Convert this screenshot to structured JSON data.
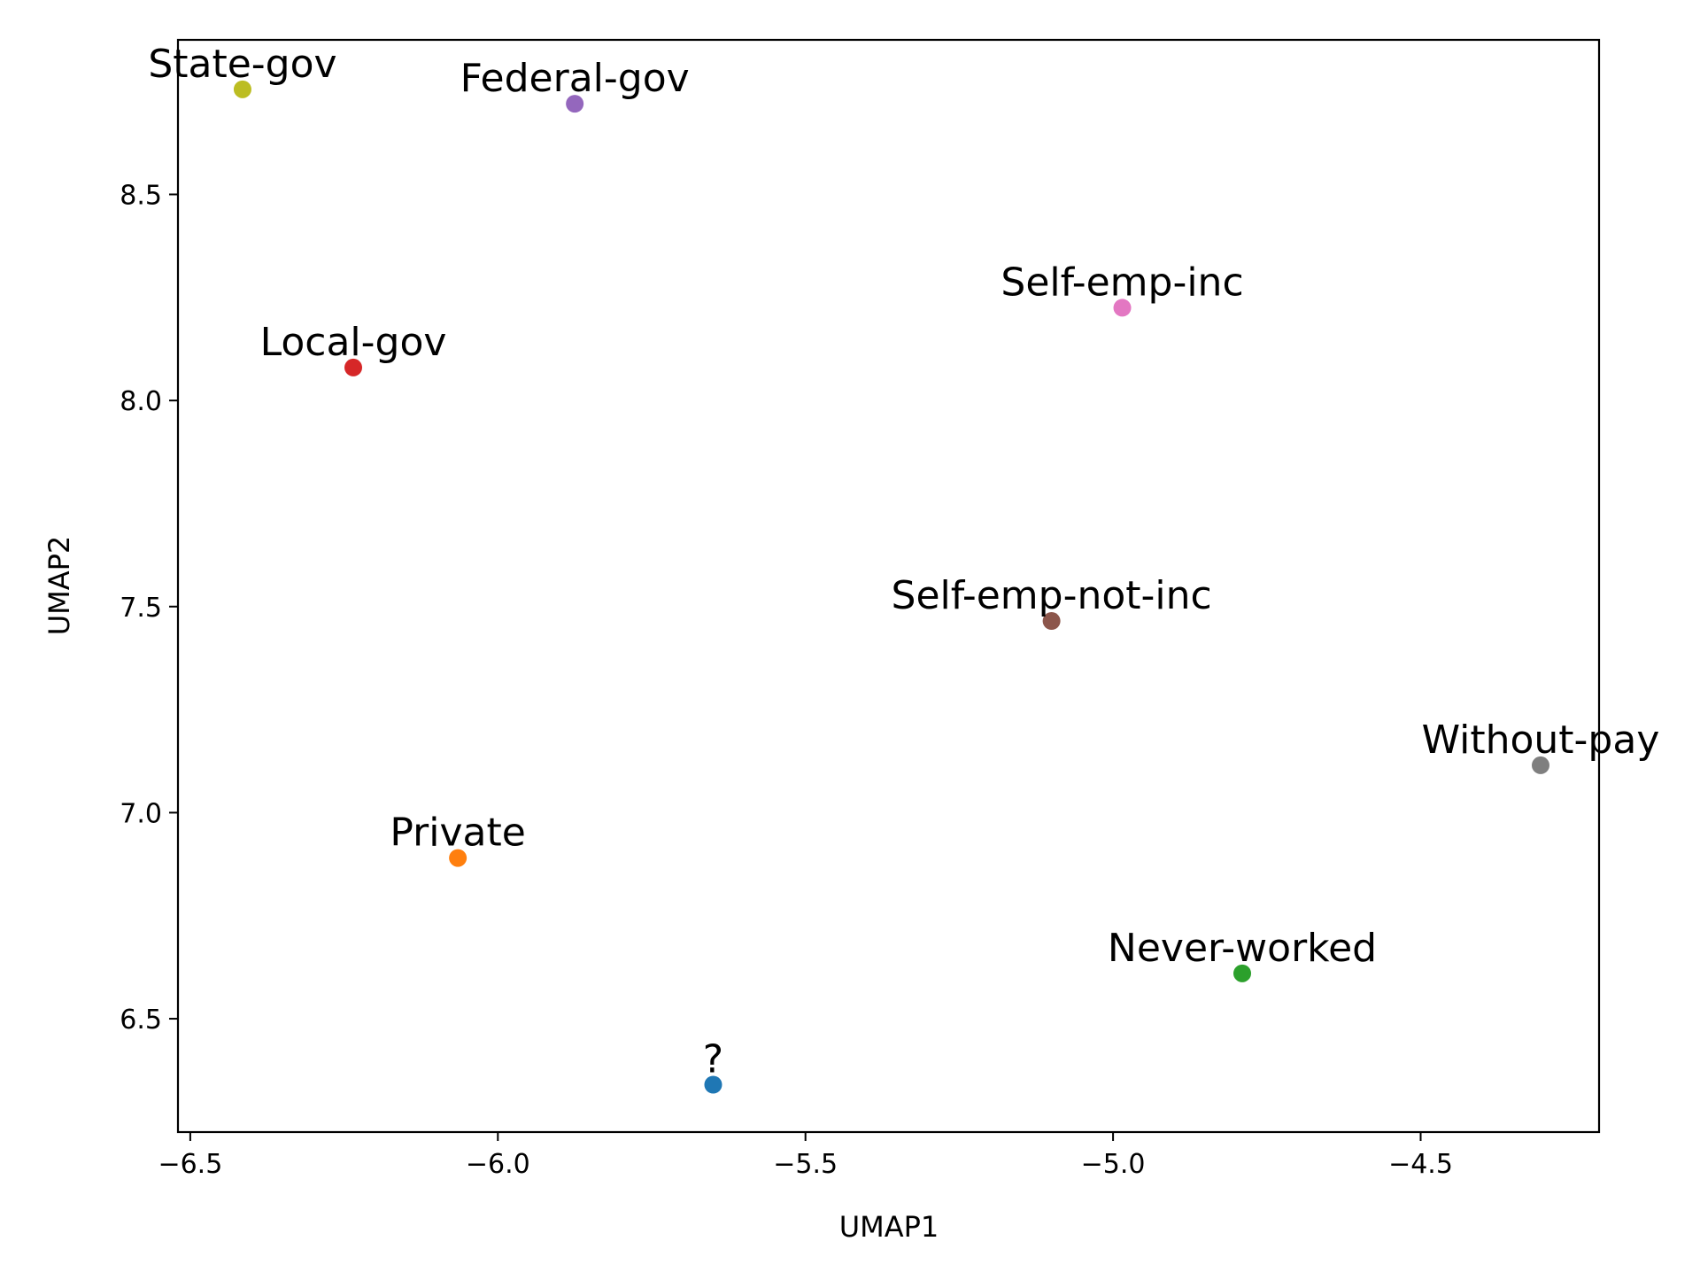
{
  "chart_data": {
    "type": "scatter",
    "title": "",
    "xlabel": "UMAP1",
    "ylabel": "UMAP2",
    "xlim": [
      -6.52,
      -4.21
    ],
    "ylim": [
      6.225,
      8.875
    ],
    "xticks": [
      -6.5,
      -6.0,
      -5.5,
      -5.0,
      -4.5
    ],
    "xtick_labels": [
      "−6.5",
      "−6.0",
      "−5.5",
      "−5.0",
      "−4.5"
    ],
    "yticks": [
      6.5,
      7.0,
      7.5,
      8.0,
      8.5
    ],
    "ytick_labels": [
      "6.5",
      "7.0",
      "7.5",
      "8.0",
      "8.5"
    ],
    "grid": false,
    "legend": "none",
    "points": [
      {
        "label": "State-gov",
        "x": -6.415,
        "y": 8.755,
        "color": "#bcbd22"
      },
      {
        "label": "Federal-gov",
        "x": -5.875,
        "y": 8.72,
        "color": "#9467bd"
      },
      {
        "label": "Self-emp-inc",
        "x": -4.985,
        "y": 8.225,
        "color": "#e377c2"
      },
      {
        "label": "Local-gov",
        "x": -6.235,
        "y": 8.08,
        "color": "#d62728"
      },
      {
        "label": "Self-emp-not-inc",
        "x": -5.1,
        "y": 7.465,
        "color": "#8c564b"
      },
      {
        "label": "Without-pay",
        "x": -4.305,
        "y": 7.115,
        "color": "#7f7f7f"
      },
      {
        "label": "Private",
        "x": -6.065,
        "y": 6.89,
        "color": "#ff7f0e"
      },
      {
        "label": "Never-worked",
        "x": -4.79,
        "y": 6.61,
        "color": "#2ca02c"
      },
      {
        "label": "?",
        "x": -5.65,
        "y": 6.34,
        "color": "#1f77b4"
      }
    ]
  }
}
